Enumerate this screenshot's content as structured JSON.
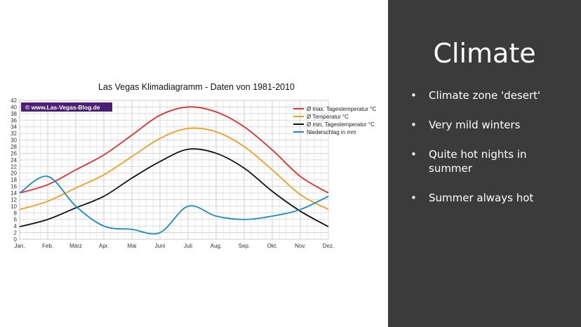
{
  "slide": {
    "title": "Climate",
    "bullets": [
      "Climate zone 'desert'",
      "Very mild winters",
      "Quite hot nights in summer",
      "Summer always hot"
    ]
  },
  "colors": {
    "panel": "#3b3b3b",
    "text": "#ffffff"
  },
  "chart_data": {
    "type": "line",
    "title": "Las Vegas Klimadiagramm - Daten von 1981-2010",
    "watermark": "© www.Las-Vegas-Blog.de",
    "categories": [
      "Jan.",
      "Feb.",
      "März",
      "Apr.",
      "Mai",
      "Juni",
      "Juli",
      "Aug.",
      "Sep.",
      "Okt.",
      "Nov.",
      "Dez."
    ],
    "y_ticks": [
      0,
      2,
      4,
      6,
      8,
      10,
      12,
      14,
      16,
      18,
      20,
      22,
      24,
      26,
      28,
      30,
      32,
      34,
      36,
      38,
      40,
      42
    ],
    "ylim": [
      0,
      42
    ],
    "grid": true,
    "legend_position": "top-right",
    "series": [
      {
        "name": "Ø max. Tagestemperatur °C",
        "color": "#e03030",
        "values": [
          14,
          16.5,
          21,
          25.5,
          31.5,
          37.5,
          40,
          38.5,
          34,
          27,
          19,
          14
        ]
      },
      {
        "name": "Ø Temperatur °C",
        "color": "#f0a020",
        "values": [
          9,
          11.5,
          15.5,
          19.5,
          25,
          30.5,
          33.5,
          32.5,
          28,
          21,
          13.5,
          9
        ]
      },
      {
        "name": "Ø min. Tagestemperatur °C",
        "color": "#111111",
        "values": [
          3.8,
          6,
          9.5,
          13,
          18.5,
          23.5,
          27.2,
          26,
          21.5,
          14.5,
          8.5,
          3.8
        ]
      },
      {
        "name": "Niederschlag in mm",
        "color": "#1a8ac0",
        "values": [
          14,
          19,
          10,
          4,
          3,
          2,
          10,
          7,
          6,
          7,
          9,
          13
        ]
      }
    ]
  }
}
